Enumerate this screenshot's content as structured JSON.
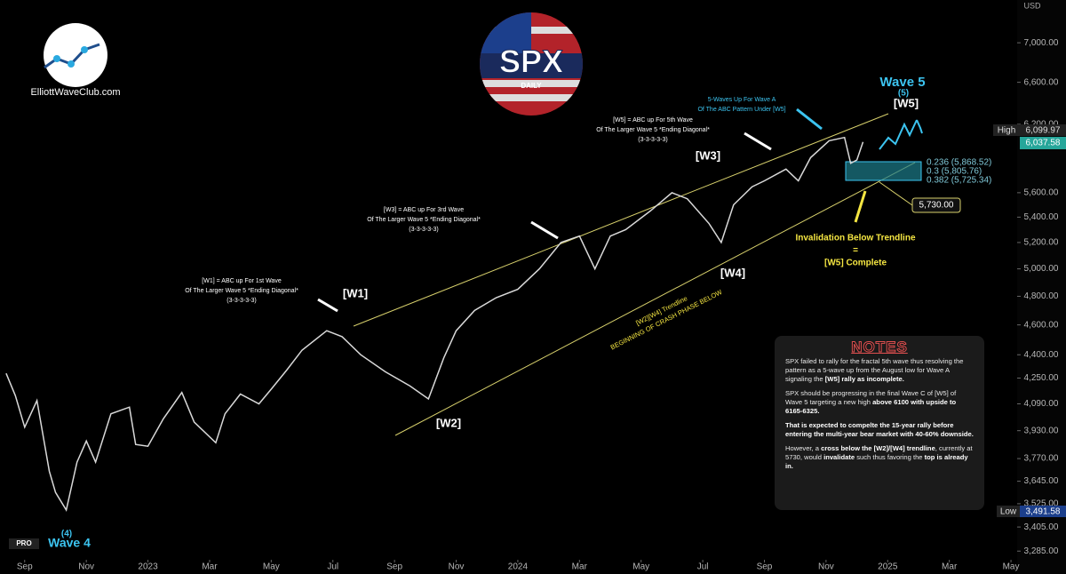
{
  "chart_data": {
    "type": "line",
    "log_scale": true,
    "x": [
      -0.6,
      -0.3,
      0,
      0.4,
      0.8,
      1.0,
      1.35,
      1.7,
      2.0,
      2.3,
      2.8,
      3.4,
      3.6,
      4.0,
      4.5,
      5.1,
      5.5,
      6.2,
      6.5,
      7.0,
      7.6,
      8.0,
      8.5,
      9.0,
      9.8,
      10.3,
      10.9,
      11.7,
      12.5,
      13.1,
      13.6,
      14.0,
      14.6,
      15.3,
      16.0,
      16.7,
      17.4,
      18.0,
      18.5,
      19.0,
      19.5,
      20.3,
      21.0,
      21.5,
      22.2,
      22.6,
      23.0,
      23.6,
      24.0,
      24.7,
      25.1,
      25.5,
      26.1,
      26.6,
      26.8,
      27.0,
      27.2
    ],
    "series": [
      {
        "color": "#d9d9d9",
        "values": [
          4280,
          4140,
          3950,
          4110,
          3700,
          3585,
          3492,
          3750,
          3870,
          3750,
          4030,
          4070,
          3850,
          3840,
          4000,
          4160,
          3980,
          3860,
          4030,
          4150,
          4090,
          4180,
          4300,
          4430,
          4560,
          4520,
          4400,
          4290,
          4200,
          4120,
          4380,
          4560,
          4700,
          4790,
          4850,
          5000,
          5200,
          5250,
          5000,
          5250,
          5300,
          5450,
          5600,
          5550,
          5350,
          5200,
          5500,
          5650,
          5700,
          5800,
          5700,
          5900,
          6050,
          6080,
          5850,
          5880,
          6040
        ]
      }
    ],
    "xlim": [
      -0.8,
      32.2
    ],
    "xticks": [
      {
        "value": 0,
        "label": "Sep"
      },
      {
        "value": 2,
        "label": "Nov"
      },
      {
        "value": 4,
        "label": "2023"
      },
      {
        "value": 6,
        "label": "Mar"
      },
      {
        "value": 8,
        "label": "May"
      },
      {
        "value": 10,
        "label": "Jul"
      },
      {
        "value": 12,
        "label": "Sep"
      },
      {
        "value": 14,
        "label": "Nov"
      },
      {
        "value": 16,
        "label": "2024"
      },
      {
        "value": 18,
        "label": "Mar"
      },
      {
        "value": 20,
        "label": "May"
      },
      {
        "value": 22,
        "label": "Jul"
      },
      {
        "value": 24,
        "label": "Sep"
      },
      {
        "value": 26,
        "label": "Nov"
      },
      {
        "value": 28,
        "label": "2025"
      },
      {
        "value": 30,
        "label": "Mar"
      },
      {
        "value": 32,
        "label": "May"
      }
    ],
    "ylim": [
      3175,
      7460
    ],
    "yticks": [
      {
        "value": 7000,
        "label": "7,000.00"
      },
      {
        "value": 6600,
        "label": "6,600.00"
      },
      {
        "value": 6200,
        "label": "6,200.00"
      },
      {
        "value": 5600,
        "label": "5,600.00"
      },
      {
        "value": 5400,
        "label": "5,400.00"
      },
      {
        "value": 5200,
        "label": "5,200.00"
      },
      {
        "value": 5000,
        "label": "5,000.00"
      },
      {
        "value": 4800,
        "label": "4,800.00"
      },
      {
        "value": 4600,
        "label": "4,600.00"
      },
      {
        "value": 4400,
        "label": "4,400.00"
      },
      {
        "value": 4250,
        "label": "4,250.00"
      },
      {
        "value": 4090,
        "label": "4,090.00"
      },
      {
        "value": 3930,
        "label": "3,930.00"
      },
      {
        "value": 3770,
        "label": "3,770.00"
      },
      {
        "value": 3645,
        "label": "3,645.00"
      },
      {
        "value": 3525,
        "label": "3,525.00"
      },
      {
        "value": 3405,
        "label": "3,405.00"
      },
      {
        "value": 3285,
        "label": "3,285.00"
      }
    ],
    "currency": "USD",
    "high": {
      "label": "High",
      "value": "6,099.97"
    },
    "last": "6,037.58",
    "low": {
      "label": "Low",
      "value": "3,491.58"
    },
    "wave_labels": [
      "[W1]",
      "[W2]",
      "[W3]",
      "[W4]",
      "[W5]",
      "Wave 5",
      "(5)",
      "Wave 4",
      "(4)"
    ],
    "fib_labels": [
      "0.236 (5,868.52)",
      "0.3 (5,805.76)",
      "0.382 (5,725.34)"
    ],
    "price_tag": "5,730.00",
    "annotations": [
      {
        "lines": [
          "[W1] = ABC up For 1st Wave",
          "Of The Larger Wave 5 *Ending Diagonal*",
          "(3-3-3-3-3)"
        ],
        "color": "#ffffff"
      },
      {
        "lines": [
          "[W3] = ABC up For 3rd Wave",
          "Of The Larger Wave 5 *Ending Diagonal*",
          "(3-3-3-3-3)"
        ],
        "color": "#ffffff"
      },
      {
        "lines": [
          "[W5] = ABC up For 5th Wave",
          "Of The Larger Wave 5 *Ending Diagonal*",
          "(3-3-3-3-3)"
        ],
        "color": "#ffffff"
      },
      {
        "lines": [
          "5-Waves Up For Wave A",
          "Of The ABC Pattern Under [W5]"
        ],
        "color": "#3cc4f0"
      },
      {
        "lines": [
          "Invalidation Below Trendline",
          "=",
          "[W5] Complete"
        ],
        "color": "#f5e642"
      },
      {
        "lines": [
          "[W2][W4] Trendline",
          "BEGINNING OF CRASH PHASE BELOW"
        ],
        "color": "#f5e642"
      }
    ]
  },
  "logo": {
    "site": "ElliottWaveClub.com",
    "symbol": "SPX",
    "interval": "DAILY",
    "badge": "PRO"
  },
  "notes": {
    "title": "NOTES",
    "paragraphs": [
      [
        {
          "text": "SPX failed to rally for the fractal 5th wave thus resolving the pattern as a 5-wave up from the August low for Wave A signaling the ",
          "bold": false
        },
        {
          "text": "[W5] rally as incomplete.",
          "bold": true
        }
      ],
      [
        {
          "text": "SPX should be progressing in the final Wave C  of [W5] of Wave 5 targeting a new high ",
          "bold": false
        },
        {
          "text": "above 6100 with upside to 6165-6325.",
          "bold": true
        }
      ],
      [
        {
          "text": "That is expected to compelte the 15-year rally before entering the multi-year bear market with 40-60% downside.",
          "bold": true
        }
      ],
      [
        {
          "text": "However, a ",
          "bold": false
        },
        {
          "text": "cross below the [W2]/[W4] trendline",
          "bold": true
        },
        {
          "text": ", currently at 5730, would ",
          "bold": false
        },
        {
          "text": "invalidate",
          "bold": true
        },
        {
          "text": " such thus favoring the ",
          "bold": false
        },
        {
          "text": "top is already in.",
          "bold": true
        }
      ]
    ]
  }
}
